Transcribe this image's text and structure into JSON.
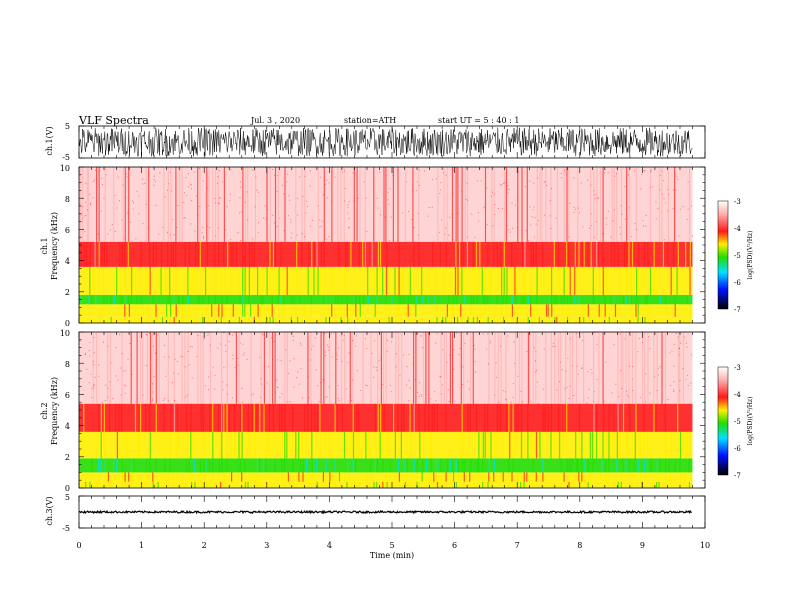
{
  "header": {
    "title": "VLF Spectra",
    "date": "Jul.  3  , 2020",
    "station": "station=ATH",
    "start_ut": "start  UT  =    5  : 40 : 1"
  },
  "chart_data": [
    {
      "type": "line",
      "panel": "ch1-waveform",
      "ylabel": "ch.1(V)",
      "ylim": [
        -5,
        5
      ],
      "yticks": [
        "5",
        "-5"
      ],
      "x_extent_min": 9.8,
      "description_values": {
        "amplitude_range_v": [
          -4.5,
          4.5
        ]
      }
    },
    {
      "type": "heatmap",
      "panel": "ch1-spectrogram",
      "ylabel": "ch.1",
      "ylabel2": "Frequency (kHz)",
      "ylim": [
        0,
        10
      ],
      "yticks": [
        "0",
        "2",
        "4",
        "6",
        "8",
        "10"
      ],
      "colorbar": {
        "label": "log(PSD)(V²/Hz)",
        "range": [
          -7,
          -3
        ],
        "ticks": [
          "-3",
          "-4",
          "-5",
          "-6",
          "-7"
        ]
      },
      "bands": [
        {
          "from_khz": 0.0,
          "to_khz": 0.4,
          "level": -4.4
        },
        {
          "from_khz": 0.4,
          "to_khz": 1.2,
          "level": -4.2
        },
        {
          "from_khz": 1.2,
          "to_khz": 1.8,
          "level": -5.1
        },
        {
          "from_khz": 1.8,
          "to_khz": 3.6,
          "level": -4.4
        },
        {
          "from_khz": 3.6,
          "to_khz": 5.2,
          "level": -3.8
        },
        {
          "from_khz": 5.2,
          "to_khz": 10.0,
          "level": -3.2
        }
      ]
    },
    {
      "type": "heatmap",
      "panel": "ch2-spectrogram",
      "ylabel": "ch.2",
      "ylabel2": "Frequency (kHz)",
      "ylim": [
        0,
        10
      ],
      "yticks": [
        "0",
        "2",
        "4",
        "6",
        "8",
        "10"
      ],
      "colorbar": {
        "label": "log(PSD)(V²/Hz)",
        "range": [
          -7,
          -3
        ],
        "ticks": [
          "-3",
          "-4",
          "-5",
          "-6",
          "-7"
        ]
      },
      "bands": [
        {
          "from_khz": 0.0,
          "to_khz": 0.4,
          "level": -4.4
        },
        {
          "from_khz": 0.4,
          "to_khz": 1.0,
          "level": -4.2
        },
        {
          "from_khz": 1.0,
          "to_khz": 1.9,
          "level": -5.1
        },
        {
          "from_khz": 1.9,
          "to_khz": 3.6,
          "level": -4.4
        },
        {
          "from_khz": 3.6,
          "to_khz": 5.4,
          "level": -3.8
        },
        {
          "from_khz": 5.4,
          "to_khz": 10.0,
          "level": -3.2
        }
      ]
    },
    {
      "type": "line",
      "panel": "ch3-waveform",
      "ylabel": "ch.3(V)",
      "ylim": [
        -5,
        5
      ],
      "yticks": [
        "5",
        "-5"
      ],
      "values": {
        "level_v": 0.0
      },
      "x_extent_min": 9.8
    }
  ],
  "x_axis": {
    "xlabel": "Time  (min)",
    "xlim": [
      0,
      10
    ],
    "ticks": [
      "0",
      "1",
      "2",
      "3",
      "4",
      "5",
      "6",
      "7",
      "8",
      "9",
      "10"
    ]
  },
  "colors": {
    "white": "#ffffff",
    "light_pink": "#ffb0b0",
    "red": "#ff1a1a",
    "yellow": "#ffee00",
    "green": "#22dd00",
    "cyan": "#00e0ff",
    "blue": "#0010ff",
    "black": "#000000"
  }
}
